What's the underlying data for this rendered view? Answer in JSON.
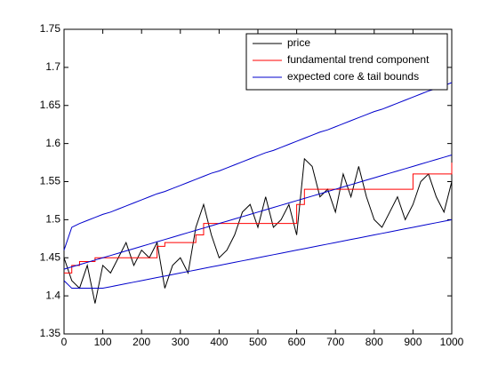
{
  "chart_data": {
    "type": "line",
    "x": [
      0,
      20,
      40,
      60,
      80,
      100,
      120,
      140,
      160,
      180,
      200,
      220,
      240,
      260,
      280,
      300,
      320,
      340,
      360,
      380,
      400,
      420,
      440,
      460,
      480,
      500,
      520,
      540,
      560,
      580,
      600,
      620,
      640,
      660,
      680,
      700,
      720,
      740,
      760,
      780,
      800,
      820,
      840,
      860,
      880,
      900,
      920,
      940,
      960,
      980,
      1000
    ],
    "series": [
      {
        "name": "price",
        "color": "#000000",
        "values": [
          1.45,
          1.42,
          1.41,
          1.44,
          1.39,
          1.44,
          1.43,
          1.45,
          1.47,
          1.44,
          1.46,
          1.45,
          1.47,
          1.41,
          1.44,
          1.45,
          1.43,
          1.49,
          1.52,
          1.48,
          1.45,
          1.46,
          1.48,
          1.51,
          1.52,
          1.49,
          1.53,
          1.49,
          1.5,
          1.52,
          1.48,
          1.58,
          1.57,
          1.53,
          1.54,
          1.51,
          1.56,
          1.53,
          1.57,
          1.53,
          1.5,
          1.49,
          1.51,
          1.53,
          1.5,
          1.52,
          1.55,
          1.56,
          1.53,
          1.51,
          1.55
        ]
      },
      {
        "name": "fundamental trend component",
        "color": "#ff0000",
        "drawstyle": "steps-post",
        "values": [
          1.43,
          1.44,
          1.445,
          1.445,
          1.45,
          1.45,
          1.45,
          1.45,
          1.45,
          1.45,
          1.45,
          1.45,
          1.465,
          1.47,
          1.47,
          1.47,
          1.47,
          1.48,
          1.495,
          1.495,
          1.495,
          1.495,
          1.495,
          1.495,
          1.495,
          1.495,
          1.495,
          1.495,
          1.495,
          1.495,
          1.52,
          1.54,
          1.54,
          1.54,
          1.54,
          1.54,
          1.54,
          1.54,
          1.54,
          1.54,
          1.54,
          1.54,
          1.54,
          1.54,
          1.54,
          1.56,
          1.56,
          1.56,
          1.56,
          1.56,
          1.575
        ]
      },
      {
        "name": "expected core & tail bounds",
        "color": "#0000cc",
        "values": [
          [
            1.46,
            1.49,
            1.495,
            1.499,
            1.503,
            1.507,
            1.51,
            1.514,
            1.518,
            1.522,
            1.526,
            1.53,
            1.534,
            1.537,
            1.541,
            1.545,
            1.549,
            1.553,
            1.557,
            1.561,
            1.564,
            1.568,
            1.572,
            1.576,
            1.58,
            1.584,
            1.588,
            1.591,
            1.595,
            1.599,
            1.603,
            1.607,
            1.611,
            1.615,
            1.618,
            1.622,
            1.626,
            1.63,
            1.634,
            1.638,
            1.642,
            1.645,
            1.649,
            1.653,
            1.657,
            1.661,
            1.665,
            1.669,
            1.672,
            1.676,
            1.68
          ],
          [
            1.435,
            1.438,
            1.441,
            1.444,
            1.447,
            1.45,
            1.453,
            1.456,
            1.459,
            1.462,
            1.465,
            1.468,
            1.471,
            1.474,
            1.477,
            1.48,
            1.483,
            1.486,
            1.489,
            1.492,
            1.495,
            1.498,
            1.501,
            1.504,
            1.507,
            1.51,
            1.513,
            1.516,
            1.519,
            1.522,
            1.525,
            1.528,
            1.531,
            1.534,
            1.537,
            1.54,
            1.543,
            1.546,
            1.549,
            1.552,
            1.555,
            1.558,
            1.561,
            1.564,
            1.567,
            1.57,
            1.573,
            1.576,
            1.579,
            1.582,
            1.585
          ],
          [
            1.42,
            1.41,
            1.41,
            1.41,
            1.41,
            1.41,
            1.412,
            1.414,
            1.416,
            1.418,
            1.42,
            1.422,
            1.424,
            1.426,
            1.428,
            1.43,
            1.432,
            1.434,
            1.436,
            1.438,
            1.44,
            1.442,
            1.444,
            1.446,
            1.448,
            1.45,
            1.452,
            1.454,
            1.456,
            1.458,
            1.46,
            1.462,
            1.464,
            1.466,
            1.468,
            1.47,
            1.472,
            1.474,
            1.476,
            1.478,
            1.48,
            1.482,
            1.484,
            1.486,
            1.488,
            1.49,
            1.492,
            1.494,
            1.496,
            1.498,
            1.5
          ]
        ]
      }
    ],
    "xlim": [
      0,
      1000
    ],
    "xticks": [
      0,
      100,
      200,
      300,
      400,
      500,
      600,
      700,
      800,
      900,
      1000
    ],
    "ylim": [
      1.35,
      1.75
    ],
    "yticks": [
      1.35,
      1.4,
      1.45,
      1.5,
      1.55,
      1.6,
      1.65,
      1.7,
      1.75
    ],
    "grid": false,
    "legend": "northeast"
  }
}
